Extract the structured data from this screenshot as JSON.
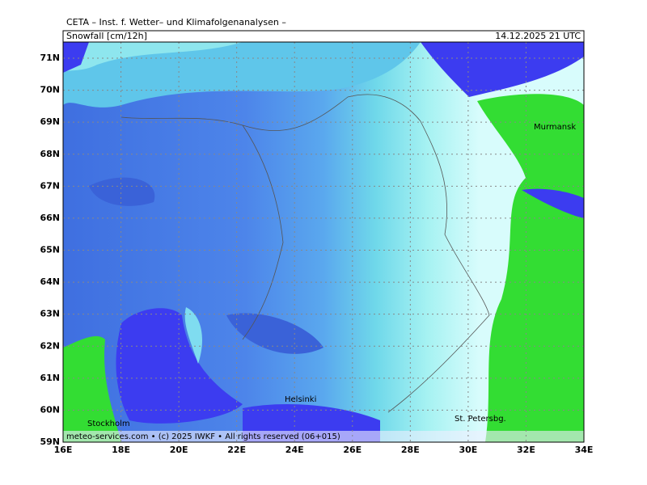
{
  "header": {
    "institute": "CETA – Inst. f. Wetter– und Klimafolgenanalysen –",
    "title": "Snowfall [cm/12h]",
    "valid_time": "14.12.2025 21 UTC"
  },
  "map": {
    "lat_labels": [
      "71N",
      "70N",
      "69N",
      "68N",
      "67N",
      "66N",
      "65N",
      "64N",
      "63N",
      "62N",
      "61N",
      "60N",
      "59N"
    ],
    "lon_labels": [
      "16E",
      "18E",
      "20E",
      "22E",
      "24E",
      "26E",
      "28E",
      "30E",
      "32E",
      "34E"
    ],
    "places": [
      "Murmansk",
      "Helsinki",
      "St. Petersbg.",
      "Stockholm"
    ]
  },
  "footer": {
    "copyright": "meteo-services.com • (c) 2025 IWKF • All rights reserved (06+015)"
  }
}
